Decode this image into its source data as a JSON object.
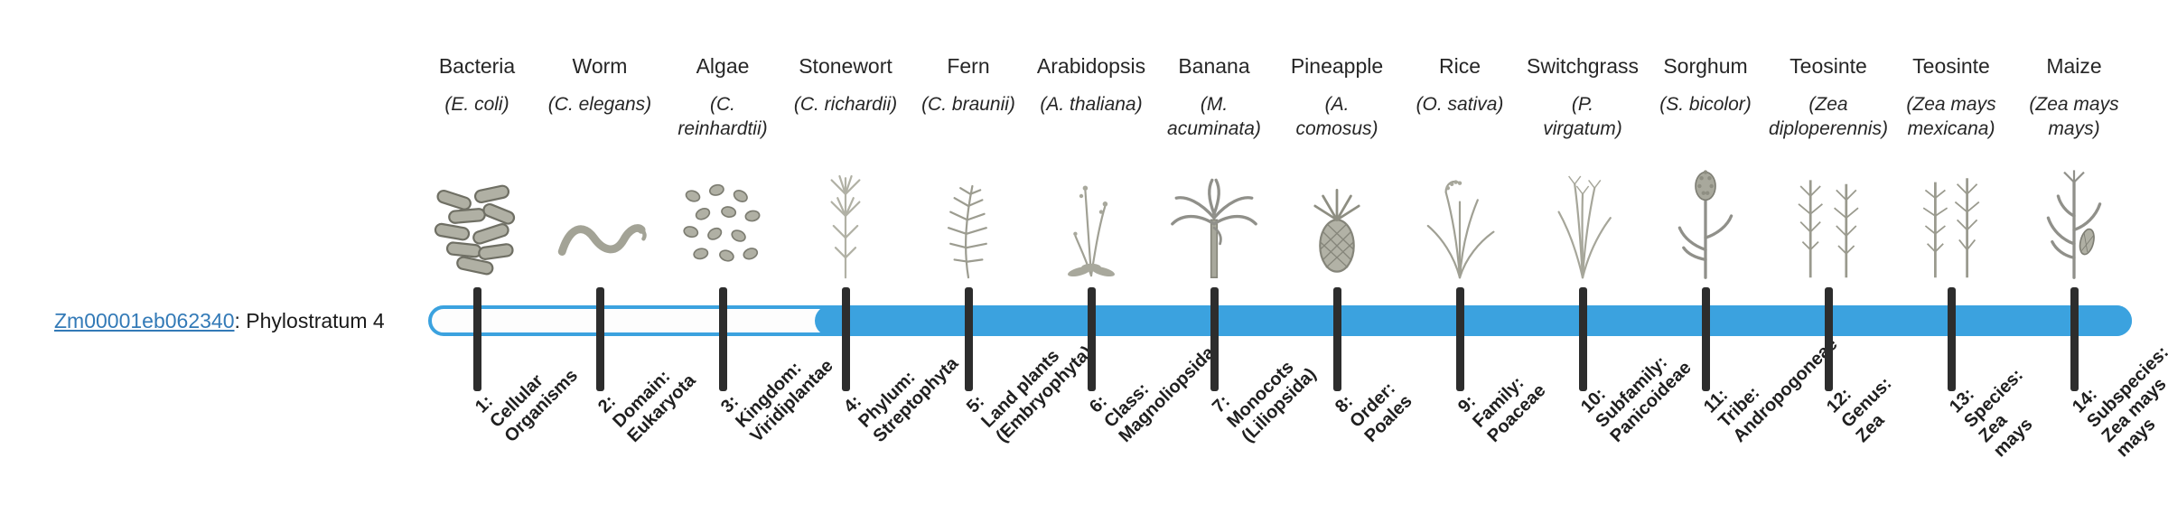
{
  "gene_label": {
    "id": "Zm00001eb062340",
    "suffix": ": Phylostratum 4"
  },
  "colors": {
    "bar": "#3ba2df",
    "tick": "#2d2d2d",
    "link": "#337ab7",
    "text": "#262626"
  },
  "chart_data": {
    "type": "bar",
    "gene": "Zm00001eb062340",
    "phylostratum": 4,
    "n_strata": 14,
    "bar_filled_from": 4,
    "bar_filled_to": 14,
    "strata": [
      {
        "index": 1,
        "taxon": "Cellular Organisms",
        "common_name": "Bacteria",
        "scientific_name": "E. coli",
        "sci_lines": [
          "(E. coli)"
        ],
        "label_lines": [
          "1:",
          "Cellular",
          "Organisms"
        ],
        "illustration": "bacteria-icon"
      },
      {
        "index": 2,
        "taxon": "Domain: Eukaryota",
        "common_name": "Worm",
        "scientific_name": "C. elegans",
        "sci_lines": [
          "(C. elegans)"
        ],
        "label_lines": [
          "2:",
          "Domain:",
          "Eukaryota"
        ],
        "illustration": "worm-icon"
      },
      {
        "index": 3,
        "taxon": "Kingdom: Viridiplantae",
        "common_name": "Algae",
        "scientific_name": "C. reinhardtii",
        "sci_lines": [
          "(C.",
          "reinhardtii)"
        ],
        "label_lines": [
          "3:",
          "Kingdom:",
          "Viridiplantae"
        ],
        "illustration": "algae-icon"
      },
      {
        "index": 4,
        "taxon": "Phylum: Streptophyta",
        "common_name": "Stonewort",
        "scientific_name": "C. richardii",
        "sci_lines": [
          "(C. richardii)"
        ],
        "label_lines": [
          "4:",
          "Phylum:",
          "Streptophyta"
        ],
        "illustration": "stonewort-icon"
      },
      {
        "index": 5,
        "taxon": "Land plants (Embryophyta)",
        "common_name": "Fern",
        "scientific_name": "C. braunii",
        "sci_lines": [
          "(C. braunii)"
        ],
        "label_lines": [
          "5:",
          "Land plants",
          "(Embryophyta)"
        ],
        "illustration": "fern-icon"
      },
      {
        "index": 6,
        "taxon": "Class: Magnoliopsida",
        "common_name": "Arabidopsis",
        "scientific_name": "A. thaliana",
        "sci_lines": [
          "(A. thaliana)"
        ],
        "label_lines": [
          "6:",
          "Class:",
          "Magnoliopsida"
        ],
        "illustration": "arabidopsis-icon"
      },
      {
        "index": 7,
        "taxon": "Monocots (Liliopsida)",
        "common_name": "Banana",
        "scientific_name": "M. acuminata",
        "sci_lines": [
          "(M.",
          "acuminata)"
        ],
        "label_lines": [
          "7:",
          "Monocots",
          "(Liliopsida)"
        ],
        "illustration": "banana-icon"
      },
      {
        "index": 8,
        "taxon": "Order: Poales",
        "common_name": "Pineapple",
        "scientific_name": "A. comosus",
        "sci_lines": [
          "(A.",
          "comosus)"
        ],
        "label_lines": [
          "8:",
          "Order:",
          "Poales"
        ],
        "illustration": "pineapple-icon"
      },
      {
        "index": 9,
        "taxon": "Family: Poaceae",
        "common_name": "Rice",
        "scientific_name": "O. sativa",
        "sci_lines": [
          "(O. sativa)"
        ],
        "label_lines": [
          "9:",
          "Family:",
          "Poaceae"
        ],
        "illustration": "rice-icon"
      },
      {
        "index": 10,
        "taxon": "Subfamily: Panicoideae",
        "common_name": "Switchgrass",
        "scientific_name": "P. virgatum",
        "sci_lines": [
          "(P.",
          "virgatum)"
        ],
        "label_lines": [
          "10:",
          "Subfamily:",
          "Panicoideae"
        ],
        "illustration": "switchgrass-icon"
      },
      {
        "index": 11,
        "taxon": "Tribe: Andropogoneae",
        "common_name": "Sorghum",
        "scientific_name": "S. bicolor",
        "sci_lines": [
          "(S. bicolor)"
        ],
        "label_lines": [
          "11:",
          "Tribe:",
          "Andropogoneae"
        ],
        "illustration": "sorghum-icon"
      },
      {
        "index": 12,
        "taxon": "Genus: Zea",
        "common_name": "Teosinte",
        "scientific_name": "Zea diploperennis",
        "sci_lines": [
          "(Zea",
          "diploperennis)"
        ],
        "label_lines": [
          "12:",
          "Genus:",
          "Zea"
        ],
        "illustration": "teosinte-diploperennis-icon"
      },
      {
        "index": 13,
        "taxon": "Species: Zea mays",
        "common_name": "Teosinte",
        "scientific_name": "Zea mays mexicana",
        "sci_lines": [
          "(Zea mays",
          "mexicana)"
        ],
        "label_lines": [
          "13:",
          "Species:",
          "Zea",
          "mays"
        ],
        "illustration": "teosinte-mexicana-icon"
      },
      {
        "index": 14,
        "taxon": "Subspecies: Zea mays mays",
        "common_name": "Maize",
        "scientific_name": "Zea mays mays",
        "sci_lines": [
          "(Zea mays",
          "mays)"
        ],
        "label_lines": [
          "14:",
          "Subspecies:",
          "Zea mays",
          "mays"
        ],
        "illustration": "maize-icon"
      }
    ]
  }
}
